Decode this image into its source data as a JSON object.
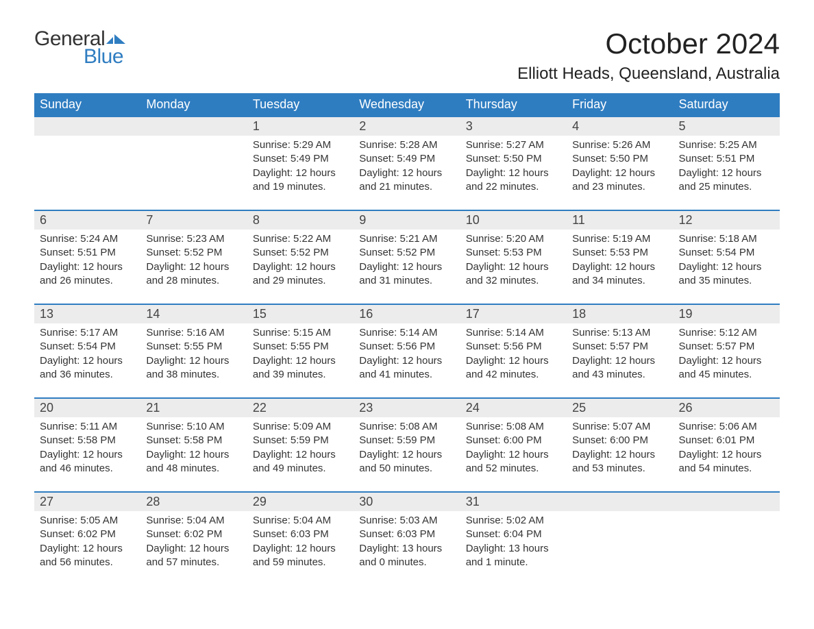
{
  "logo": {
    "word1": "General",
    "word2": "Blue",
    "flag_color": "#2f7dc1"
  },
  "title": "October 2024",
  "location": "Elliott Heads, Queensland, Australia",
  "colors": {
    "header_bg": "#2f7dc1",
    "date_row_bg": "#ececec",
    "week_border": "#2f7dc1",
    "text": "#333333",
    "background": "#ffffff"
  },
  "fonts": {
    "title_size_pt": 32,
    "location_size_pt": 18,
    "dayheader_size_pt": 14,
    "body_size_pt": 11
  },
  "day_headers": [
    "Sunday",
    "Monday",
    "Tuesday",
    "Wednesday",
    "Thursday",
    "Friday",
    "Saturday"
  ],
  "weeks": [
    {
      "dates": [
        "",
        "",
        "1",
        "2",
        "3",
        "4",
        "5"
      ],
      "cells": [
        null,
        null,
        {
          "sunrise": "Sunrise: 5:29 AM",
          "sunset": "Sunset: 5:49 PM",
          "day1": "Daylight: 12 hours",
          "day2": "and 19 minutes."
        },
        {
          "sunrise": "Sunrise: 5:28 AM",
          "sunset": "Sunset: 5:49 PM",
          "day1": "Daylight: 12 hours",
          "day2": "and 21 minutes."
        },
        {
          "sunrise": "Sunrise: 5:27 AM",
          "sunset": "Sunset: 5:50 PM",
          "day1": "Daylight: 12 hours",
          "day2": "and 22 minutes."
        },
        {
          "sunrise": "Sunrise: 5:26 AM",
          "sunset": "Sunset: 5:50 PM",
          "day1": "Daylight: 12 hours",
          "day2": "and 23 minutes."
        },
        {
          "sunrise": "Sunrise: 5:25 AM",
          "sunset": "Sunset: 5:51 PM",
          "day1": "Daylight: 12 hours",
          "day2": "and 25 minutes."
        }
      ]
    },
    {
      "dates": [
        "6",
        "7",
        "8",
        "9",
        "10",
        "11",
        "12"
      ],
      "cells": [
        {
          "sunrise": "Sunrise: 5:24 AM",
          "sunset": "Sunset: 5:51 PM",
          "day1": "Daylight: 12 hours",
          "day2": "and 26 minutes."
        },
        {
          "sunrise": "Sunrise: 5:23 AM",
          "sunset": "Sunset: 5:52 PM",
          "day1": "Daylight: 12 hours",
          "day2": "and 28 minutes."
        },
        {
          "sunrise": "Sunrise: 5:22 AM",
          "sunset": "Sunset: 5:52 PM",
          "day1": "Daylight: 12 hours",
          "day2": "and 29 minutes."
        },
        {
          "sunrise": "Sunrise: 5:21 AM",
          "sunset": "Sunset: 5:52 PM",
          "day1": "Daylight: 12 hours",
          "day2": "and 31 minutes."
        },
        {
          "sunrise": "Sunrise: 5:20 AM",
          "sunset": "Sunset: 5:53 PM",
          "day1": "Daylight: 12 hours",
          "day2": "and 32 minutes."
        },
        {
          "sunrise": "Sunrise: 5:19 AM",
          "sunset": "Sunset: 5:53 PM",
          "day1": "Daylight: 12 hours",
          "day2": "and 34 minutes."
        },
        {
          "sunrise": "Sunrise: 5:18 AM",
          "sunset": "Sunset: 5:54 PM",
          "day1": "Daylight: 12 hours",
          "day2": "and 35 minutes."
        }
      ]
    },
    {
      "dates": [
        "13",
        "14",
        "15",
        "16",
        "17",
        "18",
        "19"
      ],
      "cells": [
        {
          "sunrise": "Sunrise: 5:17 AM",
          "sunset": "Sunset: 5:54 PM",
          "day1": "Daylight: 12 hours",
          "day2": "and 36 minutes."
        },
        {
          "sunrise": "Sunrise: 5:16 AM",
          "sunset": "Sunset: 5:55 PM",
          "day1": "Daylight: 12 hours",
          "day2": "and 38 minutes."
        },
        {
          "sunrise": "Sunrise: 5:15 AM",
          "sunset": "Sunset: 5:55 PM",
          "day1": "Daylight: 12 hours",
          "day2": "and 39 minutes."
        },
        {
          "sunrise": "Sunrise: 5:14 AM",
          "sunset": "Sunset: 5:56 PM",
          "day1": "Daylight: 12 hours",
          "day2": "and 41 minutes."
        },
        {
          "sunrise": "Sunrise: 5:14 AM",
          "sunset": "Sunset: 5:56 PM",
          "day1": "Daylight: 12 hours",
          "day2": "and 42 minutes."
        },
        {
          "sunrise": "Sunrise: 5:13 AM",
          "sunset": "Sunset: 5:57 PM",
          "day1": "Daylight: 12 hours",
          "day2": "and 43 minutes."
        },
        {
          "sunrise": "Sunrise: 5:12 AM",
          "sunset": "Sunset: 5:57 PM",
          "day1": "Daylight: 12 hours",
          "day2": "and 45 minutes."
        }
      ]
    },
    {
      "dates": [
        "20",
        "21",
        "22",
        "23",
        "24",
        "25",
        "26"
      ],
      "cells": [
        {
          "sunrise": "Sunrise: 5:11 AM",
          "sunset": "Sunset: 5:58 PM",
          "day1": "Daylight: 12 hours",
          "day2": "and 46 minutes."
        },
        {
          "sunrise": "Sunrise: 5:10 AM",
          "sunset": "Sunset: 5:58 PM",
          "day1": "Daylight: 12 hours",
          "day2": "and 48 minutes."
        },
        {
          "sunrise": "Sunrise: 5:09 AM",
          "sunset": "Sunset: 5:59 PM",
          "day1": "Daylight: 12 hours",
          "day2": "and 49 minutes."
        },
        {
          "sunrise": "Sunrise: 5:08 AM",
          "sunset": "Sunset: 5:59 PM",
          "day1": "Daylight: 12 hours",
          "day2": "and 50 minutes."
        },
        {
          "sunrise": "Sunrise: 5:08 AM",
          "sunset": "Sunset: 6:00 PM",
          "day1": "Daylight: 12 hours",
          "day2": "and 52 minutes."
        },
        {
          "sunrise": "Sunrise: 5:07 AM",
          "sunset": "Sunset: 6:00 PM",
          "day1": "Daylight: 12 hours",
          "day2": "and 53 minutes."
        },
        {
          "sunrise": "Sunrise: 5:06 AM",
          "sunset": "Sunset: 6:01 PM",
          "day1": "Daylight: 12 hours",
          "day2": "and 54 minutes."
        }
      ]
    },
    {
      "dates": [
        "27",
        "28",
        "29",
        "30",
        "31",
        "",
        ""
      ],
      "cells": [
        {
          "sunrise": "Sunrise: 5:05 AM",
          "sunset": "Sunset: 6:02 PM",
          "day1": "Daylight: 12 hours",
          "day2": "and 56 minutes."
        },
        {
          "sunrise": "Sunrise: 5:04 AM",
          "sunset": "Sunset: 6:02 PM",
          "day1": "Daylight: 12 hours",
          "day2": "and 57 minutes."
        },
        {
          "sunrise": "Sunrise: 5:04 AM",
          "sunset": "Sunset: 6:03 PM",
          "day1": "Daylight: 12 hours",
          "day2": "and 59 minutes."
        },
        {
          "sunrise": "Sunrise: 5:03 AM",
          "sunset": "Sunset: 6:03 PM",
          "day1": "Daylight: 13 hours",
          "day2": "and 0 minutes."
        },
        {
          "sunrise": "Sunrise: 5:02 AM",
          "sunset": "Sunset: 6:04 PM",
          "day1": "Daylight: 13 hours",
          "day2": "and 1 minute."
        },
        null,
        null
      ]
    }
  ]
}
